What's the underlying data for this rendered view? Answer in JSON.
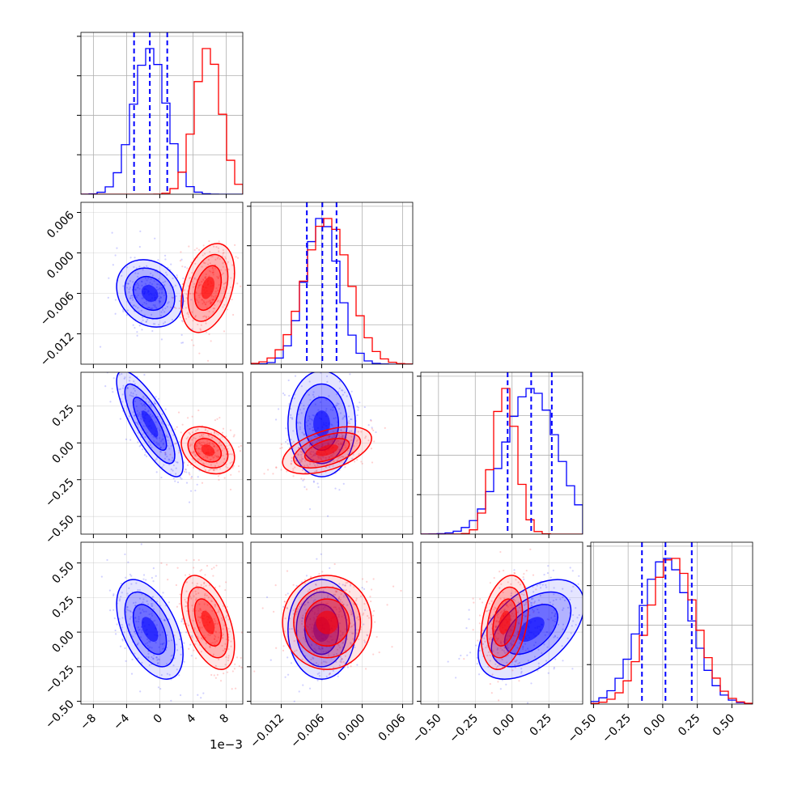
{
  "figure": {
    "offset_text": "1e−3",
    "colors": {
      "blue": "#0000ff",
      "red": "#ff0000",
      "grid": "#b0b0b0"
    }
  },
  "chart_data": {
    "type": "corner",
    "parameters": [
      {
        "range": [
          -9.5,
          10.0
        ],
        "ticks": [
          -8,
          -4,
          0,
          4,
          8
        ],
        "tick_labels": [
          "−8",
          "−4",
          "0",
          "4",
          "8"
        ]
      },
      {
        "range": [
          -0.0165,
          0.0075
        ],
        "ticks": [
          -0.012,
          -0.006,
          0.0,
          0.006
        ],
        "tick_labels": [
          "−0.012",
          "−0.006",
          "0.000",
          "0.006"
        ]
      },
      {
        "range": [
          -0.62,
          0.48
        ],
        "ticks": [
          -0.5,
          -0.25,
          0.0,
          0.25
        ],
        "tick_labels": [
          "−0.50",
          "−0.25",
          "0.00",
          "0.25"
        ]
      },
      {
        "range": [
          -0.52,
          0.65
        ],
        "ticks": [
          -0.5,
          -0.25,
          0.0,
          0.25,
          0.5
        ],
        "tick_labels": [
          "−0.50",
          "−0.25",
          "0.00",
          "0.25",
          "0.50"
        ]
      }
    ],
    "series": [
      {
        "color": "#0000ff",
        "means": [
          -1.2,
          -0.006,
          0.13,
          0.02
        ],
        "sds": [
          2.0,
          0.0025,
          0.18,
          0.18
        ],
        "quantiles": [
          [
            -3.1,
            -1.2,
            0.9
          ],
          [
            -0.0082,
            -0.0059,
            -0.0038
          ],
          [
            -0.03,
            0.13,
            0.27
          ],
          [
            -0.15,
            0.02,
            0.21
          ]
        ],
        "correlations": {
          "1-0": -0.2,
          "2-0": -0.8,
          "2-1": 0.0,
          "3-0": -0.5,
          "3-1": 0.0,
          "3-2": 0.5
        }
      },
      {
        "color": "#ff0000",
        "means": [
          5.8,
          -0.0052,
          -0.05,
          0.07
        ],
        "sds": [
          1.6,
          0.0033,
          0.08,
          0.17
        ],
        "correlations": {
          "1-0": 0.35,
          "2-0": -0.3,
          "2-1": 0.5,
          "3-0": -0.5,
          "3-1": 0.0,
          "3-2": 0.3
        }
      }
    ]
  }
}
